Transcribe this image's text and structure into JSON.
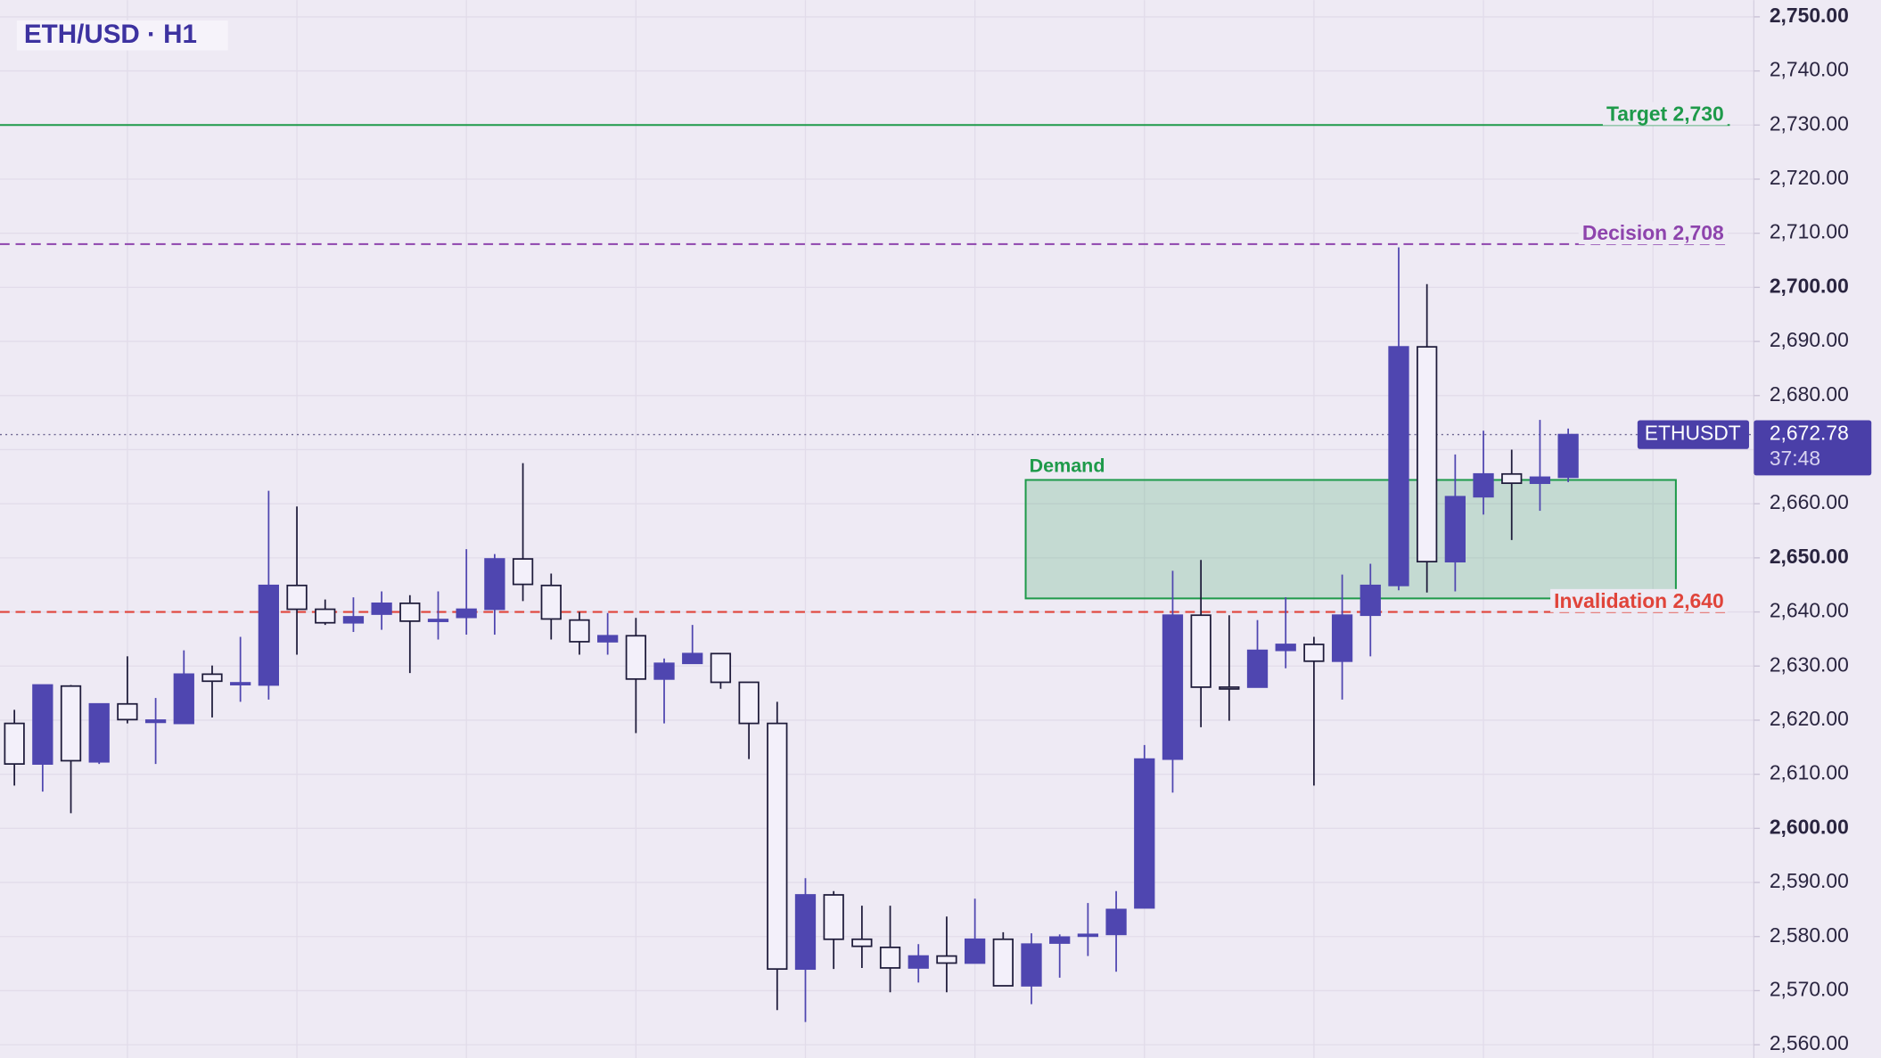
{
  "chart_data": {
    "type": "candlestick",
    "title": "ETH/USD · H1",
    "ylim": [
      2560,
      2750
    ],
    "yticks": [
      {
        "value": 2560,
        "label": "2,560.00"
      },
      {
        "value": 2570,
        "label": "2,570.00"
      },
      {
        "value": 2580,
        "label": "2,580.00"
      },
      {
        "value": 2590,
        "label": "2,590.00"
      },
      {
        "value": 2600,
        "label": "2,600.00"
      },
      {
        "value": 2610,
        "label": "2,610.00"
      },
      {
        "value": 2620,
        "label": "2,620.00"
      },
      {
        "value": 2630,
        "label": "2,630.00"
      },
      {
        "value": 2640,
        "label": "2,640.00"
      },
      {
        "value": 2650,
        "label": "2,650.00"
      },
      {
        "value": 2660,
        "label": "2,660.00"
      },
      {
        "value": 2670,
        "label": "2,670.00"
      },
      {
        "value": 2680,
        "label": "2,680.00"
      },
      {
        "value": 2690,
        "label": "2,690.00"
      },
      {
        "value": 2700,
        "label": "2,700.00"
      },
      {
        "value": 2710,
        "label": "2,710.00"
      },
      {
        "value": 2720,
        "label": "2,720.00"
      },
      {
        "value": 2730,
        "label": "2,730.00"
      },
      {
        "value": 2740,
        "label": "2,740.00"
      },
      {
        "value": 2750,
        "label": "2,750.00"
      }
    ],
    "grid": true,
    "up_color": "#4f46b0",
    "down_color": "#f3f0fa",
    "ohlc": [
      [
        2619.4,
        2621.9,
        2607.9,
        2611.9
      ],
      [
        2611.9,
        2626.5,
        2606.8,
        2626.5
      ],
      [
        2626.3,
        2626.5,
        2602.8,
        2612.5
      ],
      [
        2612.3,
        2623.0,
        2611.9,
        2623.0
      ],
      [
        2623.0,
        2631.8,
        2619.4,
        2620.1
      ],
      [
        2619.6,
        2624.1,
        2611.9,
        2620.0
      ],
      [
        2619.4,
        2632.9,
        2619.4,
        2628.5
      ],
      [
        2628.5,
        2630.1,
        2620.5,
        2627.2
      ],
      [
        2626.8,
        2635.4,
        2623.4,
        2626.9
      ],
      [
        2626.5,
        2662.4,
        2623.8,
        2644.9
      ],
      [
        2644.9,
        2659.5,
        2632.1,
        2640.5
      ],
      [
        2640.5,
        2642.3,
        2637.6,
        2638.0
      ],
      [
        2638.0,
        2642.7,
        2636.3,
        2639.1
      ],
      [
        2639.6,
        2643.8,
        2636.7,
        2641.6
      ],
      [
        2641.6,
        2643.1,
        2628.7,
        2638.3
      ],
      [
        2638.4,
        2643.8,
        2634.9,
        2638.6
      ],
      [
        2639.0,
        2651.6,
        2635.8,
        2640.5
      ],
      [
        2640.5,
        2650.7,
        2635.8,
        2649.8
      ],
      [
        2649.8,
        2667.5,
        2642.0,
        2645.1
      ],
      [
        2644.9,
        2647.1,
        2634.9,
        2638.7
      ],
      [
        2638.5,
        2640.0,
        2632.1,
        2634.5
      ],
      [
        2634.5,
        2639.8,
        2632.1,
        2635.6
      ],
      [
        2635.6,
        2638.9,
        2617.6,
        2627.6
      ],
      [
        2627.6,
        2631.4,
        2619.4,
        2630.5
      ],
      [
        2630.5,
        2637.6,
        2630.5,
        2632.3
      ],
      [
        2632.3,
        2632.3,
        2625.8,
        2627.0
      ],
      [
        2627.0,
        2627.0,
        2612.8,
        2619.4
      ],
      [
        2619.4,
        2623.4,
        2566.4,
        2574.0
      ],
      [
        2574.0,
        2590.8,
        2564.2,
        2587.7
      ],
      [
        2587.7,
        2588.4,
        2574.0,
        2579.5
      ],
      [
        2579.5,
        2585.7,
        2574.2,
        2578.2
      ],
      [
        2578.0,
        2585.7,
        2569.7,
        2574.2
      ],
      [
        2574.2,
        2578.6,
        2571.5,
        2576.4
      ],
      [
        2576.4,
        2583.7,
        2569.7,
        2575.1
      ],
      [
        2575.1,
        2587.0,
        2575.1,
        2579.5
      ],
      [
        2579.5,
        2580.8,
        2570.9,
        2570.9
      ],
      [
        2570.9,
        2580.6,
        2567.5,
        2578.6
      ],
      [
        2578.8,
        2580.4,
        2572.4,
        2579.9
      ],
      [
        2580.2,
        2586.2,
        2576.4,
        2580.4
      ],
      [
        2580.4,
        2588.4,
        2573.5,
        2585.0
      ],
      [
        2585.3,
        2615.4,
        2585.3,
        2612.8
      ],
      [
        2612.8,
        2647.6,
        2606.6,
        2639.4
      ],
      [
        2639.4,
        2649.6,
        2618.7,
        2626.1
      ],
      [
        2626.1,
        2639.4,
        2619.9,
        2626.0
      ],
      [
        2626.1,
        2638.5,
        2626.1,
        2632.9
      ],
      [
        2632.9,
        2642.7,
        2629.6,
        2634.0
      ],
      [
        2634.0,
        2635.4,
        2607.9,
        2630.9
      ],
      [
        2630.9,
        2646.9,
        2623.8,
        2639.4
      ],
      [
        2639.4,
        2648.9,
        2631.8,
        2644.9
      ],
      [
        2644.9,
        2707.4,
        2644.0,
        2689.0
      ],
      [
        2689.0,
        2700.6,
        2643.6,
        2649.3
      ],
      [
        2649.3,
        2669.1,
        2643.8,
        2661.3
      ],
      [
        2661.3,
        2673.5,
        2658.0,
        2665.5
      ],
      [
        2665.5,
        2670.0,
        2653.3,
        2663.8
      ],
      [
        2663.8,
        2675.5,
        2658.7,
        2664.9
      ],
      [
        2664.9,
        2673.9,
        2664.0,
        2672.78
      ]
    ],
    "levels": [
      {
        "label": "Target 2,730",
        "value": 2730,
        "color": "#1e9a4a",
        "dashed": false
      },
      {
        "label": "Decision 2,708",
        "value": 2708,
        "color": "#8e44ad",
        "dashed": true
      },
      {
        "label": "Invalidation 2,640",
        "value": 2640,
        "color": "#e0443a",
        "dashed": true
      }
    ],
    "zone": {
      "label": "Demand",
      "low": 2642.5,
      "high": 2664.4,
      "color": "#1e9a4a"
    },
    "symbol_tag": "ETHUSDT",
    "last_price": {
      "value": 2672.78,
      "label": "2,672.78"
    },
    "countdown": "37:48"
  }
}
